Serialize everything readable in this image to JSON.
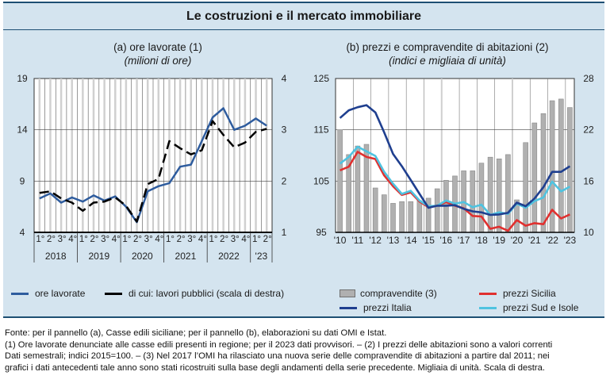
{
  "title": "Le costruzioni e il mercato immobiliare",
  "legend_a": [
    {
      "label": "ore lavorate",
      "color": "#2e5c9e",
      "style": "solid"
    },
    {
      "label": "di cui: lavori pubblici (scala di destra)",
      "color": "#000000",
      "style": "dashed"
    }
  ],
  "legend_b": [
    {
      "label": "compravendite (3)",
      "color": "#b0b0b0",
      "style": "bar"
    },
    {
      "label": "prezzi Italia",
      "color": "#1f3f8f",
      "style": "solid"
    },
    {
      "label": "prezzi Sicilia",
      "color": "#e0302f",
      "style": "solid"
    },
    {
      "label": "prezzi Sud e Isole",
      "color": "#4fc3e0",
      "style": "solid"
    }
  ],
  "notes": [
    "Fonte: per il pannello (a), Casse edili siciliane; per il pannello (b), elaborazioni su dati OMI e Istat.",
    "(1) Ore lavorate denunciate alle casse edili presenti in regione; per il 2023 dati provvisori. – (2) I prezzi delle abitazioni sono a valori correnti",
    "Dati semestrali; indici 2015=100. – (3) Nel 2017 l’OMI ha rilasciato una nuova serie delle compravendite di abitazioni a partire dal 2011; nei",
    "grafici i dati antecedenti tale anno sono stati ricostruiti sulla base degli andamenti della serie precedente. Migliaia di unità. Scala di destra."
  ],
  "chart_data": [
    {
      "type": "line",
      "title": "(a) ore lavorate (1)",
      "subtitle": "(milioni di ore)",
      "quarter_labels": [
        "1°",
        "2°",
        "3°",
        "4°",
        "1°",
        "2°",
        "3°",
        "4°",
        "1°",
        "2°",
        "3°",
        "4°",
        "1°",
        "2°",
        "3°",
        "4°",
        "1°",
        "2°",
        "3°",
        "4°",
        "1°",
        "2°"
      ],
      "year_labels": [
        {
          "label": "2018",
          "quarters": 4
        },
        {
          "label": "2019",
          "quarters": 4
        },
        {
          "label": "2020",
          "quarters": 4
        },
        {
          "label": "2021",
          "quarters": 4
        },
        {
          "label": "2022",
          "quarters": 4
        },
        {
          "label": "'23",
          "quarters": 2
        }
      ],
      "ylim": [
        4,
        19
      ],
      "yticks": [
        "4",
        "9",
        "14",
        "19"
      ],
      "ytick_values": [
        4,
        9,
        14,
        19
      ],
      "y2lim": [
        1,
        4
      ],
      "y2ticks": [
        "1",
        "2",
        "3",
        "4"
      ],
      "y2tick_values": [
        1,
        2,
        3,
        4
      ],
      "grid": true,
      "series": [
        {
          "name": "ore lavorate",
          "axis": "left",
          "color": "#2e5c9e",
          "dash": false,
          "values": [
            7.3,
            7.8,
            6.9,
            7.4,
            7.0,
            7.6,
            7.1,
            7.5,
            6.5,
            5.0,
            8.0,
            8.5,
            8.8,
            10.4,
            10.6,
            12.9,
            15.2,
            16.1,
            14.0,
            14.4,
            15.1,
            14.4
          ]
        },
        {
          "name": "di cui: lavori pubblici (scala di destra)",
          "axis": "right",
          "color": "#000000",
          "dash": true,
          "values": [
            1.77,
            1.8,
            1.66,
            1.58,
            1.42,
            1.58,
            1.6,
            1.68,
            1.52,
            1.21,
            1.94,
            2.04,
            2.78,
            2.64,
            2.52,
            2.6,
            3.17,
            2.9,
            2.66,
            2.75,
            2.96,
            3.02
          ]
        }
      ]
    },
    {
      "type": "bar+line",
      "title": "(b) prezzi e compravendite di abitazioni (2)",
      "subtitle": "(indici e migliaia di unità)",
      "x": [
        "2010 H1",
        "2010 H2",
        "2011 H1",
        "2011 H2",
        "2012 H1",
        "2012 H2",
        "2013 H1",
        "2013 H2",
        "2014 H1",
        "2014 H2",
        "2015 H1",
        "2015 H2",
        "2016 H1",
        "2016 H2",
        "2017 H1",
        "2017 H2",
        "2018 H1",
        "2018 H2",
        "2019 H1",
        "2019 H2",
        "2020 H1",
        "2020 H2",
        "2021 H1",
        "2021 H2",
        "2022 H1",
        "2022 H2",
        "2023 H1"
      ],
      "xtick_labels": [
        "'10",
        "'11",
        "'12",
        "'13",
        "'14",
        "'15",
        "'16",
        "'17",
        "'18",
        "'19",
        "'20",
        "'21",
        "'22",
        "'23"
      ],
      "ylim": [
        95,
        125
      ],
      "yticks": [
        "95",
        "105",
        "115",
        "125"
      ],
      "ytick_values": [
        95,
        105,
        115,
        125
      ],
      "y2lim": [
        10,
        28
      ],
      "y2ticks": [
        "10",
        "16",
        "22",
        "28"
      ],
      "y2tick_values": [
        10,
        16,
        22,
        28
      ],
      "grid": true,
      "bars": {
        "name": "compravendite (3)",
        "axis": "right",
        "color": "#b0b0b0",
        "values": [
          22.0,
          19.1,
          20.1,
          20.3,
          15.2,
          14.4,
          13.4,
          13.6,
          13.6,
          13.7,
          14.0,
          15.1,
          16.1,
          16.6,
          17.2,
          17.2,
          18.1,
          18.8,
          18.6,
          19.1,
          13.8,
          20.5,
          22.8,
          23.9,
          25.4,
          25.6,
          24.6
        ]
      },
      "series": [
        {
          "name": "prezzi Italia",
          "axis": "left",
          "color": "#1f3f8f",
          "values": [
            117.3,
            118.8,
            119.4,
            119.8,
            118.4,
            114.5,
            110.3,
            107.9,
            105.2,
            102.5,
            99.8,
            100.2,
            100.2,
            100.3,
            99.6,
            99.1,
            98.9,
            98.4,
            98.5,
            98.8,
            100.8,
            100.1,
            101.6,
            103.8,
            106.8,
            106.8,
            107.9
          ]
        },
        {
          "name": "prezzi Sicilia",
          "axis": "left",
          "color": "#e0302f",
          "values": [
            107.1,
            107.8,
            110.7,
            109.7,
            109.3,
            106.1,
            104.0,
            102.3,
            102.8,
            101.0,
            99.9,
            100.2,
            100.9,
            100.2,
            99.7,
            98.2,
            98.1,
            95.7,
            96.1,
            95.3,
            97.4,
            96.3,
            96.8,
            96.6,
            99.4,
            97.7,
            98.5
          ]
        },
        {
          "name": "prezzi Sud e Isole",
          "axis": "left",
          "color": "#4fc3e0",
          "values": [
            108.4,
            109.7,
            111.7,
            110.8,
            109.9,
            106.8,
            104.5,
            102.5,
            103.1,
            101.2,
            100.1,
            100.2,
            101.2,
            100.6,
            100.9,
            99.9,
            100.4,
            98.4,
            98.9,
            98.6,
            100.6,
            99.8,
            101.1,
            101.8,
            104.9,
            103.0,
            103.9
          ]
        }
      ]
    }
  ]
}
